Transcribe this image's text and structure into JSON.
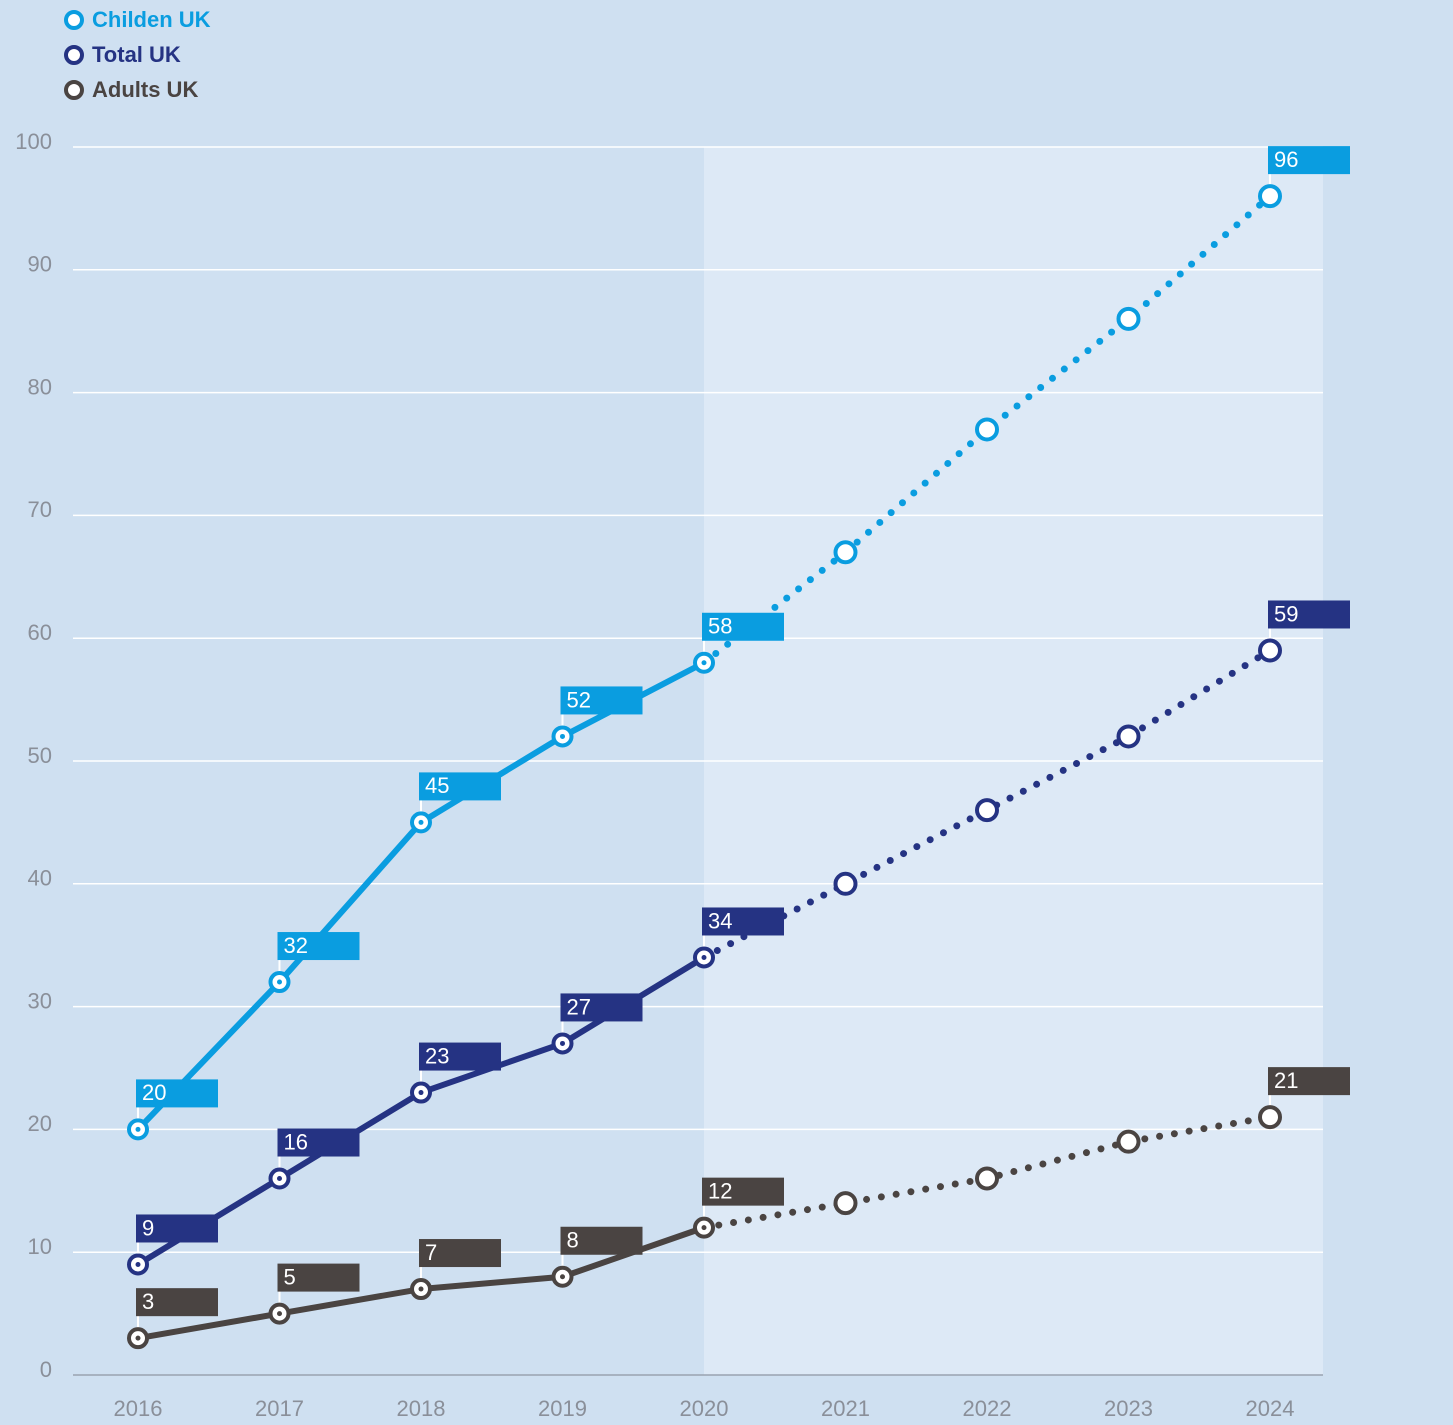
{
  "chart_data": {
    "type": "line",
    "categories": [
      "2016",
      "2017",
      "2018",
      "2019",
      "2020",
      "2021",
      "2022",
      "2023",
      "2024"
    ],
    "forecast_from": "2020",
    "series": [
      {
        "name": "Childen UK",
        "color": "#0a9de0",
        "values": [
          20,
          32,
          45,
          52,
          58,
          67,
          77,
          86,
          96
        ],
        "value_labels": [
          "20",
          "32",
          "45",
          "52",
          "58",
          null,
          null,
          null,
          "96"
        ]
      },
      {
        "name": "Total UK",
        "color": "#253383",
        "values": [
          9,
          16,
          23,
          27,
          34,
          40,
          46,
          52,
          59
        ],
        "value_labels": [
          "9",
          "16",
          "23",
          "27",
          "34",
          null,
          null,
          null,
          "59"
        ]
      },
      {
        "name": "Adults UK",
        "color": "#4a4442",
        "values": [
          3,
          5,
          7,
          8,
          12,
          14,
          16,
          19,
          21
        ],
        "value_labels": [
          "3",
          "5",
          "7",
          "8",
          "12",
          null,
          null,
          null,
          "21"
        ]
      }
    ],
    "ylim": [
      0,
      100
    ],
    "yticks": [
      0,
      10,
      20,
      30,
      40,
      50,
      60,
      70,
      80,
      90,
      100
    ],
    "grid": true
  }
}
